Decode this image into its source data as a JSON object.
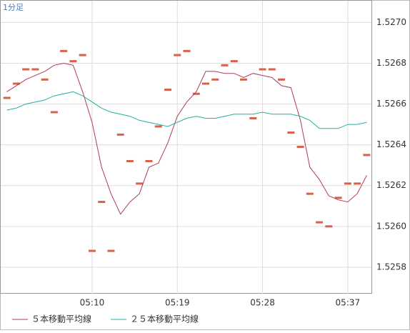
{
  "chart_data": {
    "type": "line",
    "title": "1分足",
    "categories": [
      null,
      null,
      null,
      null,
      null,
      null,
      null,
      null,
      null,
      "05:10",
      null,
      null,
      null,
      null,
      null,
      null,
      null,
      null,
      "05:19",
      null,
      null,
      null,
      null,
      null,
      null,
      null,
      null,
      "05:28",
      null,
      null,
      null,
      null,
      null,
      null,
      null,
      null,
      "05:37",
      null,
      null
    ],
    "series": [
      {
        "color": "#d5624a",
        "marker": "dash",
        "values": [
          1.52663,
          1.5267,
          1.52677,
          1.52677,
          1.52672,
          1.52656,
          1.52686,
          1.52681,
          1.52684,
          1.52588,
          1.52612,
          1.52588,
          1.52645,
          1.52632,
          1.52621,
          1.52632,
          1.52649,
          1.52667,
          1.52684,
          1.52686,
          1.52665,
          1.5267,
          1.52672,
          1.52679,
          1.52681,
          1.52672,
          1.52653,
          1.52677,
          1.52677,
          1.52672,
          1.52646,
          1.52639,
          1.52616,
          1.52602,
          1.526,
          1.52614,
          1.52621,
          1.52621,
          1.52635
        ]
      },
      {
        "name": "５本移動平均線",
        "color": "#b03a5a",
        "values": [
          1.52666,
          1.52669,
          1.52672,
          1.52674,
          1.52676,
          1.52679,
          1.5268,
          1.52679,
          1.52666,
          1.52651,
          1.52629,
          1.52616,
          1.52606,
          1.52612,
          1.52616,
          1.52629,
          1.52631,
          1.52641,
          1.52654,
          1.52661,
          1.52666,
          1.52676,
          1.52676,
          1.52675,
          1.52675,
          1.52673,
          1.52675,
          1.52674,
          1.52673,
          1.52669,
          1.52668,
          1.52652,
          1.52629,
          1.52623,
          1.52615,
          1.52613,
          1.52612,
          1.52616,
          1.52625
        ]
      },
      {
        "name": "２５本移動平均線",
        "color": "#20b0a0",
        "values": [
          1.52657,
          1.52658,
          1.5266,
          1.52661,
          1.52662,
          1.52664,
          1.52665,
          1.52666,
          1.52664,
          1.52661,
          1.52658,
          1.52656,
          1.52655,
          1.52654,
          1.52652,
          1.52651,
          1.5265,
          1.52649,
          1.52651,
          1.52653,
          1.52654,
          1.52653,
          1.52653,
          1.52654,
          1.52655,
          1.52655,
          1.52655,
          1.52656,
          1.52655,
          1.52655,
          1.52655,
          1.52654,
          1.52652,
          1.52648,
          1.52648,
          1.52648,
          1.5265,
          1.5265,
          1.52651
        ]
      }
    ],
    "ylim": [
      1.52567,
      1.52711
    ],
    "yticks": [
      {
        "value": 1.5258,
        "label": "1.5258"
      },
      {
        "value": 1.526,
        "label": "1.5260"
      },
      {
        "value": 1.5262,
        "label": "1.5262"
      },
      {
        "value": 1.5264,
        "label": "1.5264"
      },
      {
        "value": 1.5266,
        "label": "1.5266"
      },
      {
        "value": 1.5268,
        "label": "1.5268"
      },
      {
        "value": 1.527,
        "label": "1.5270"
      }
    ],
    "grid": true
  }
}
